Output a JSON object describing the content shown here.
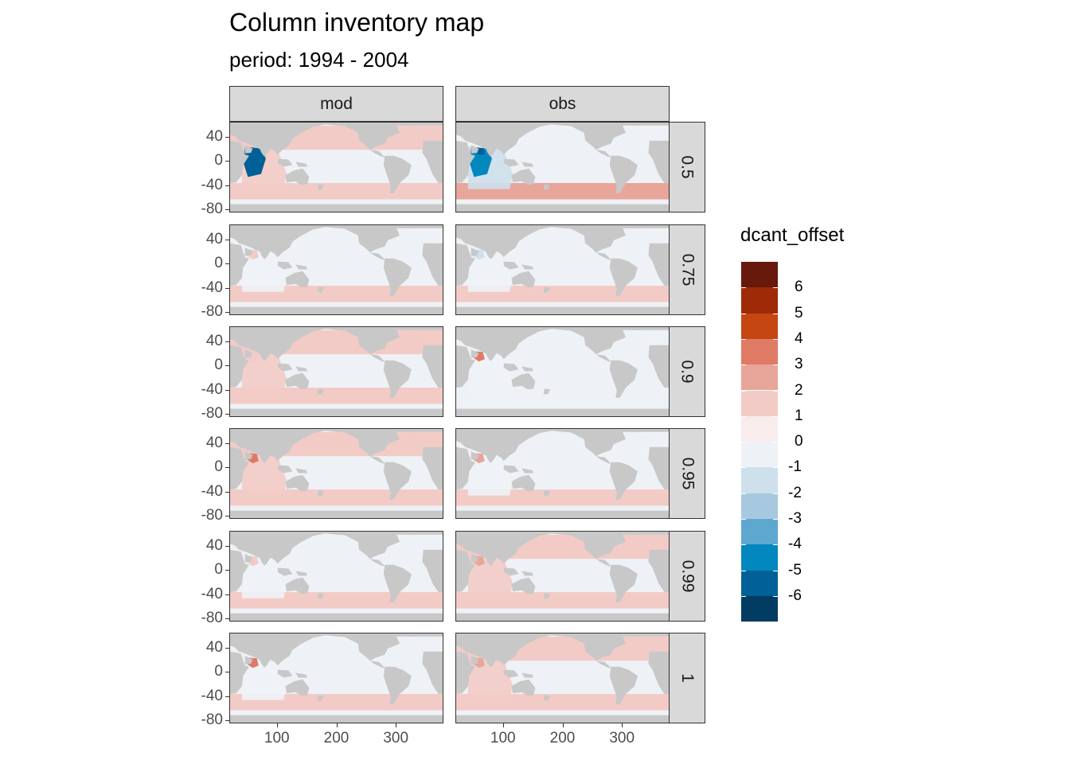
{
  "chart_data": {
    "type": "heatmap",
    "title": "Column inventory map",
    "subtitle": "period: 1994 - 2004",
    "facet_columns": [
      "mod",
      "obs"
    ],
    "facet_rows": [
      "0.5",
      "0.75",
      "0.9",
      "0.95",
      "0.99",
      "1"
    ],
    "x_ticks": [
      "100",
      "200",
      "300"
    ],
    "x_tick_values": [
      100,
      200,
      300
    ],
    "xlim": [
      20,
      380
    ],
    "y_ticks": [
      "40",
      "0",
      "-40",
      "-80"
    ],
    "y_tick_values": [
      40,
      0,
      -40,
      -80
    ],
    "ylim": [
      -85,
      65
    ],
    "legend": {
      "title": "dcant_offset",
      "labels": [
        "6",
        "5",
        "4",
        "3",
        "2",
        "1",
        "0",
        "-1",
        "-2",
        "-3",
        "-4",
        "-5",
        "-6"
      ],
      "colors": [
        "#67190c",
        "#9e2a07",
        "#c64612",
        "#df7a65",
        "#e8a59a",
        "#f3cbc6",
        "#f8ecec",
        "#eef2f6",
        "#cde0ec",
        "#a7c9df",
        "#5ea8d0",
        "#0387bf",
        "#006097",
        "#023c63"
      ]
    },
    "panels": [
      {
        "row": "0.5",
        "col": "mod",
        "south_band": 0,
        "mid_band": 0,
        "hotspot": -6
      },
      {
        "row": "0.5",
        "col": "obs",
        "south_band": 1,
        "mid_band": -2,
        "hotspot": -5
      },
      {
        "row": "0.75",
        "col": "mod",
        "south_band": 0,
        "mid_band": -1,
        "hotspot": 0
      },
      {
        "row": "0.75",
        "col": "obs",
        "south_band": 0,
        "mid_band": -1,
        "hotspot": -2
      },
      {
        "row": "0.9",
        "col": "mod",
        "south_band": 0,
        "mid_band": 0,
        "hotspot": 1
      },
      {
        "row": "0.9",
        "col": "obs",
        "south_band": -1,
        "mid_band": -1,
        "hotspot": 3
      },
      {
        "row": "0.95",
        "col": "mod",
        "south_band": 0,
        "mid_band": 0,
        "hotspot": 3
      },
      {
        "row": "0.95",
        "col": "obs",
        "south_band": 0,
        "mid_band": -1,
        "hotspot": 2
      },
      {
        "row": "0.99",
        "col": "mod",
        "south_band": 0,
        "mid_band": -1,
        "hotspot": 1
      },
      {
        "row": "0.99",
        "col": "obs",
        "south_band": 0,
        "mid_band": 0,
        "hotspot": 2
      },
      {
        "row": "1",
        "col": "mod",
        "south_band": 0,
        "mid_band": -1,
        "hotspot": 3
      },
      {
        "row": "1",
        "col": "obs",
        "south_band": 0,
        "mid_band": 0,
        "hotspot": 2
      }
    ]
  }
}
